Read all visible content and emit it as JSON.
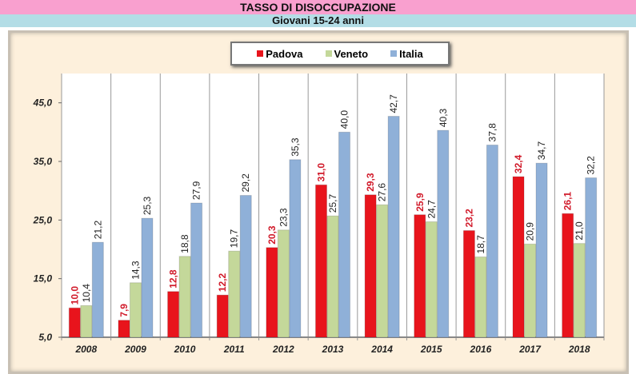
{
  "header": {
    "title": "TASSO DI DISOCCUPAZIONE",
    "subtitle": "Giovani 15-24 anni"
  },
  "chart_data": {
    "type": "bar",
    "categories": [
      "2008",
      "2009",
      "2010",
      "2011",
      "2012",
      "2013",
      "2014",
      "2015",
      "2016",
      "2017",
      "2018"
    ],
    "series": [
      {
        "name": "Padova",
        "color": "#e8141c",
        "label_color": "#d11a2a",
        "values": [
          10.0,
          7.9,
          12.8,
          12.2,
          20.3,
          31.0,
          29.3,
          25.9,
          23.2,
          32.4,
          26.1
        ]
      },
      {
        "name": "Veneto",
        "color": "#c4d89a",
        "label_color": "#222222",
        "values": [
          10.4,
          14.3,
          18.8,
          19.7,
          23.3,
          25.7,
          27.6,
          24.7,
          18.7,
          20.9,
          21.0
        ]
      },
      {
        "name": "Italia",
        "color": "#8fb0d8",
        "label_color": "#222222",
        "values": [
          21.2,
          25.3,
          27.9,
          29.2,
          35.3,
          40.0,
          42.7,
          40.3,
          37.8,
          34.7,
          32.2
        ]
      }
    ],
    "yticks": [
      "5,0",
      "15,0",
      "25,0",
      "35,0",
      "45,0"
    ],
    "ylim": [
      5,
      50
    ],
    "legend": "top-center",
    "grid": "vertical separators"
  }
}
